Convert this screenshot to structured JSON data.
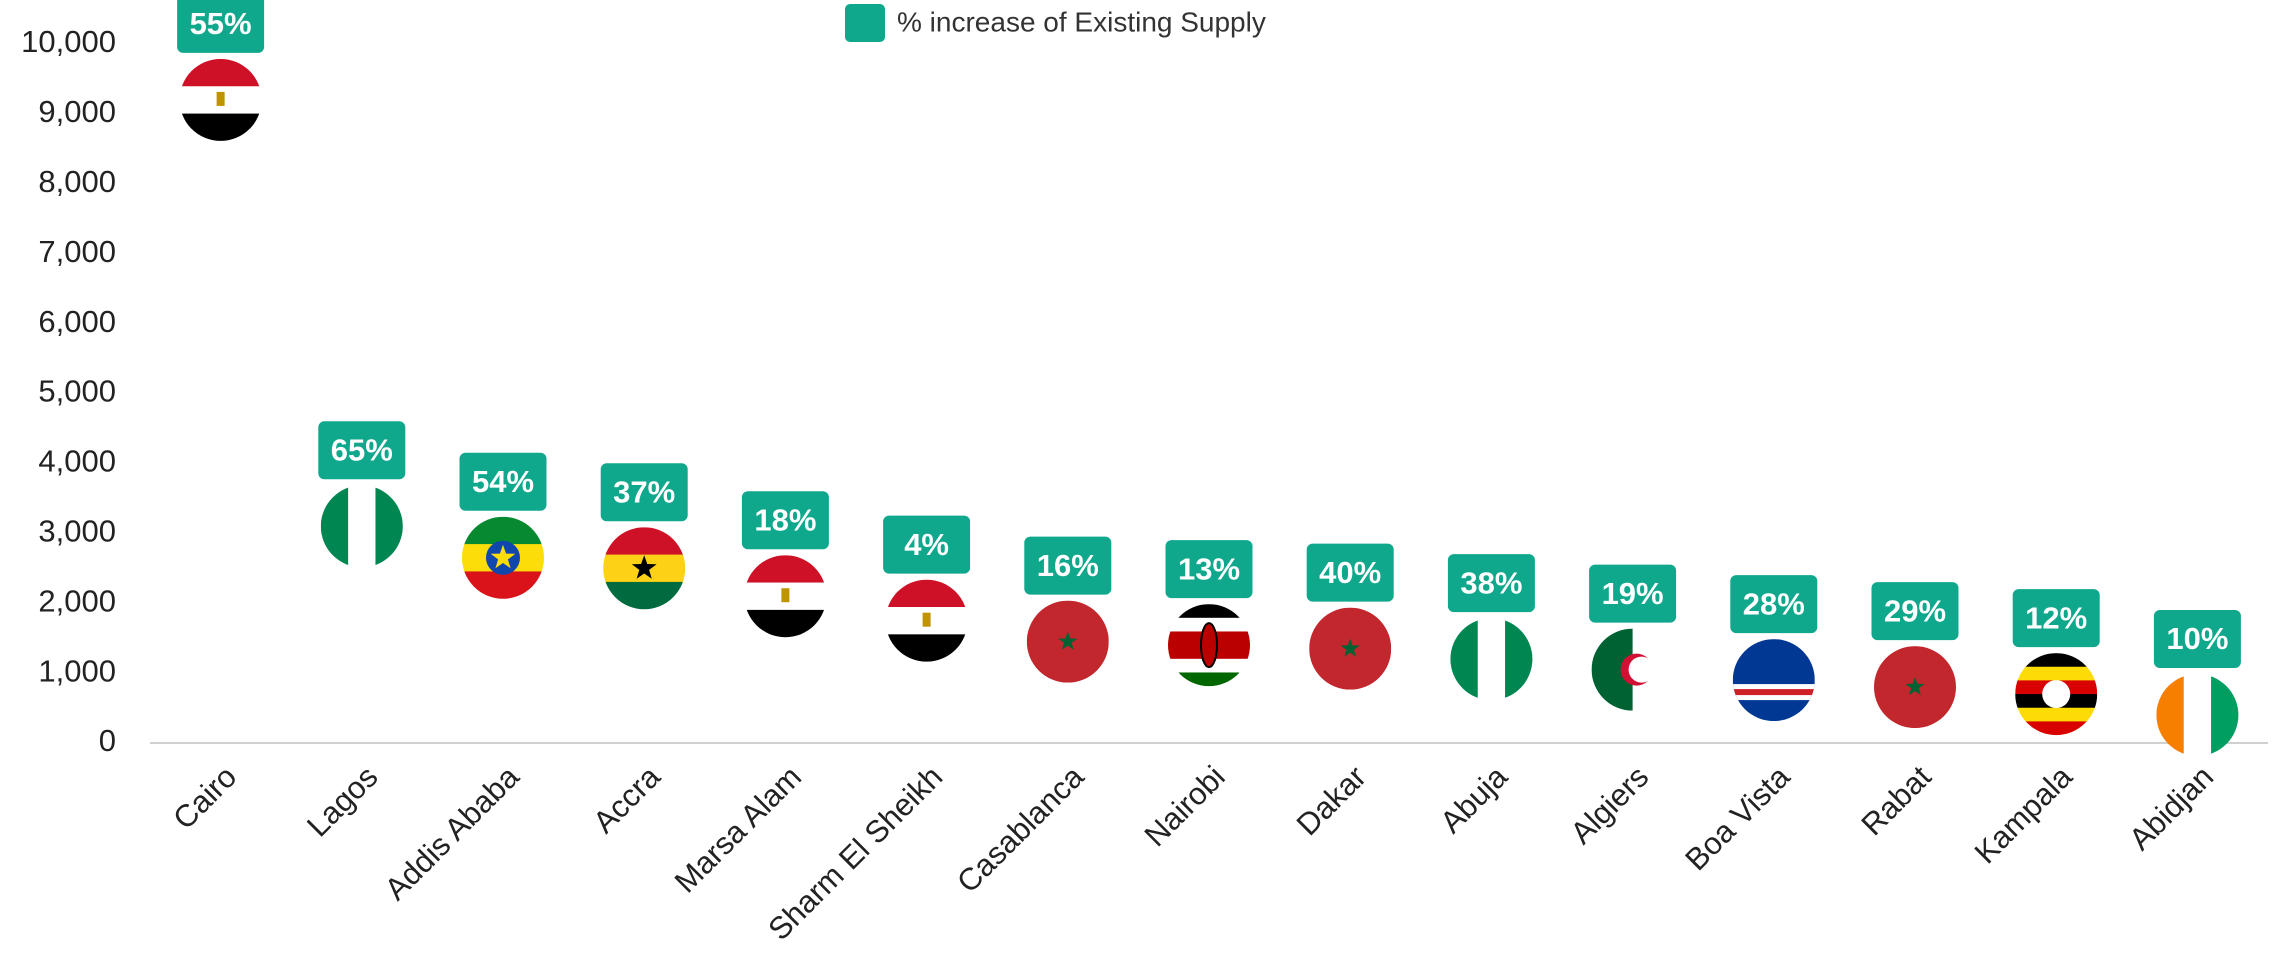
{
  "chart_data": {
    "type": "scatter",
    "categories": [
      "Cairo",
      "Lagos",
      "Addis Ababa",
      "Accra",
      "Marsa Alam",
      "Sharm El Sheikh",
      "Casablanca",
      "Nairobi",
      "Dakar",
      "Abuja",
      "Algiers",
      "Boa Vista",
      "Rabat",
      "Kampala",
      "Abidjan"
    ],
    "series": [
      {
        "name": "% increase of Existing Supply",
        "color": "#0fa88c",
        "values": [
          9200,
          3100,
          2650,
          2500,
          2100,
          1750,
          1450,
          1400,
          1350,
          1200,
          1050,
          900,
          800,
          700,
          400
        ],
        "pct": [
          55,
          65,
          54,
          37,
          18,
          4,
          16,
          13,
          40,
          38,
          19,
          28,
          29,
          12,
          10
        ],
        "value_labels": [
          "55%",
          "65%",
          "54%",
          "37%",
          "18%",
          "4%",
          "16%",
          "13%",
          "40%",
          "38%",
          "19%",
          "28%",
          "29%",
          "12%",
          "10%"
        ]
      }
    ],
    "ylim": [
      0,
      10000
    ],
    "yticks": [
      0,
      {
        "value": 1000,
        "label": "1,000"
      },
      {
        "value": 2000,
        "label": "2,000"
      },
      {
        "value": 3000,
        "label": "3,000"
      },
      {
        "value": 4000,
        "label": "4,000"
      },
      {
        "value": 5000,
        "label": "5,000"
      },
      {
        "value": 6000,
        "label": "6,000"
      },
      {
        "value": 7000,
        "label": "7,000"
      },
      {
        "value": 8000,
        "label": "8,000"
      },
      {
        "value": 9000,
        "label": "9,000"
      },
      {
        "value": 10000,
        "label": "10,000"
      }
    ],
    "grid": false,
    "legend": "top"
  }
}
